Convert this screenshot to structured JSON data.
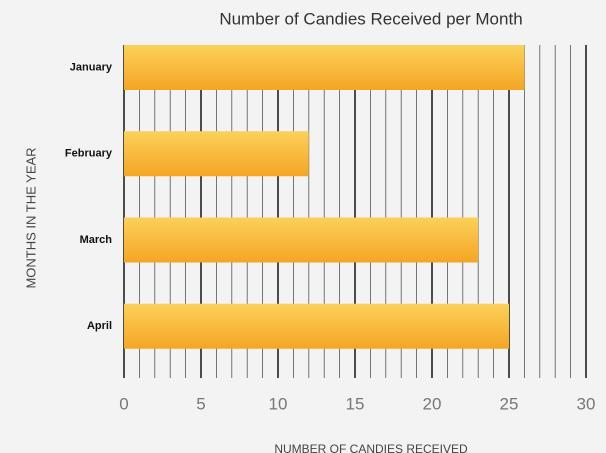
{
  "chart_data": {
    "type": "hbar",
    "title": "Number of Candies Received per Month",
    "x_label": "NUMBER OF CANDIES RECEIVED",
    "y_label": "MONTHS IN THE YEAR",
    "categories": [
      "January",
      "February",
      "March",
      "April"
    ],
    "values": [
      26,
      12,
      23,
      25
    ],
    "color": "#f7b733",
    "xlim": [
      0,
      30
    ],
    "xticks": [
      0,
      5,
      10,
      15,
      20,
      25,
      30
    ],
    "xminorticks": [
      1,
      2,
      3,
      4,
      6,
      7,
      8,
      9,
      11,
      12,
      13,
      14,
      16,
      17,
      18,
      19,
      21,
      22,
      23,
      24,
      26,
      27,
      28,
      29
    ],
    "grid": true
  }
}
